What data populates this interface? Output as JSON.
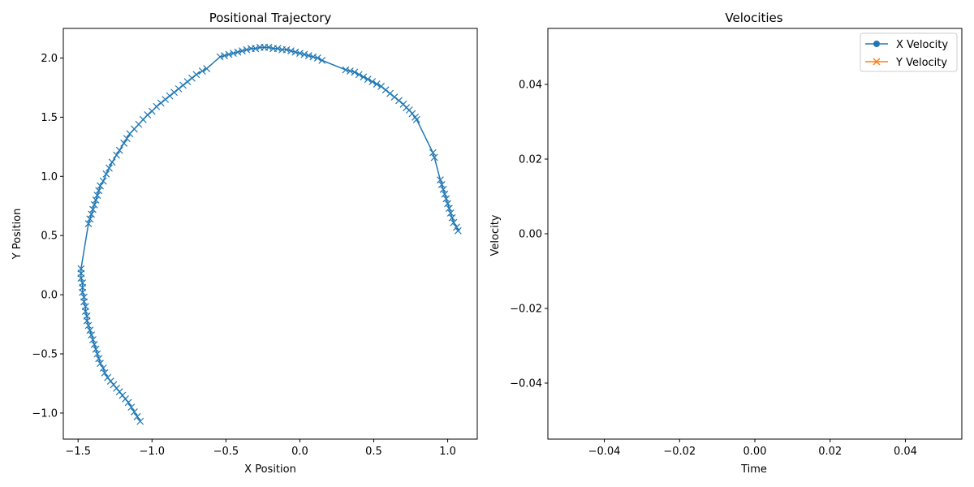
{
  "chart_data": [
    {
      "type": "line",
      "title": "Positional Trajectory",
      "xlabel": "X Position",
      "ylabel": "Y Position",
      "xlim": [
        -1.6,
        1.2
      ],
      "ylim": [
        -1.22,
        2.25
      ],
      "xticks": [
        -1.5,
        -1.0,
        -0.5,
        0.0,
        0.5,
        1.0
      ],
      "xtick_labels": [
        "−1.5",
        "−1.0",
        "−0.5",
        "0.0",
        "0.5",
        "1.0"
      ],
      "yticks": [
        -1.0,
        -0.5,
        0.0,
        0.5,
        1.0,
        1.5,
        2.0
      ],
      "ytick_labels": [
        "−1.0",
        "−0.5",
        "0.0",
        "0.5",
        "1.0",
        "1.5",
        "2.0"
      ],
      "grid": false,
      "series": [
        {
          "marker": "x",
          "color": "#1f77b4",
          "points": [
            [
              -1.08,
              -1.07
            ],
            [
              -1.1,
              -1.03
            ],
            [
              -1.12,
              -0.99
            ],
            [
              -1.14,
              -0.95
            ],
            [
              -1.16,
              -0.91
            ],
            [
              -1.18,
              -0.88
            ],
            [
              -1.2,
              -0.85
            ],
            [
              -1.22,
              -0.82
            ],
            [
              -1.24,
              -0.79
            ],
            [
              -1.26,
              -0.76
            ],
            [
              -1.28,
              -0.73
            ],
            [
              -1.3,
              -0.7
            ],
            [
              -1.32,
              -0.66
            ],
            [
              -1.33,
              -0.62
            ],
            [
              -1.35,
              -0.58
            ],
            [
              -1.36,
              -0.54
            ],
            [
              -1.37,
              -0.5
            ],
            [
              -1.38,
              -0.46
            ],
            [
              -1.39,
              -0.42
            ],
            [
              -1.4,
              -0.38
            ],
            [
              -1.41,
              -0.34
            ],
            [
              -1.42,
              -0.3
            ],
            [
              -1.43,
              -0.26
            ],
            [
              -1.44,
              -0.22
            ],
            [
              -1.44,
              -0.18
            ],
            [
              -1.45,
              -0.14
            ],
            [
              -1.45,
              -0.1
            ],
            [
              -1.46,
              -0.06
            ],
            [
              -1.46,
              -0.02
            ],
            [
              -1.47,
              0.02
            ],
            [
              -1.47,
              0.06
            ],
            [
              -1.47,
              0.1
            ],
            [
              -1.48,
              0.14
            ],
            [
              -1.48,
              0.18
            ],
            [
              -1.48,
              0.22
            ],
            [
              -1.43,
              0.6
            ],
            [
              -1.42,
              0.64
            ],
            [
              -1.41,
              0.68
            ],
            [
              -1.4,
              0.72
            ],
            [
              -1.39,
              0.76
            ],
            [
              -1.38,
              0.8
            ],
            [
              -1.37,
              0.84
            ],
            [
              -1.36,
              0.88
            ],
            [
              -1.35,
              0.92
            ],
            [
              -1.33,
              0.96
            ],
            [
              -1.31,
              1.02
            ],
            [
              -1.29,
              1.07
            ],
            [
              -1.27,
              1.12
            ],
            [
              -1.24,
              1.18
            ],
            [
              -1.22,
              1.22
            ],
            [
              -1.19,
              1.28
            ],
            [
              -1.17,
              1.32
            ],
            [
              -1.15,
              1.36
            ],
            [
              -1.12,
              1.4
            ],
            [
              -1.09,
              1.44
            ],
            [
              -1.06,
              1.48
            ],
            [
              -1.03,
              1.52
            ],
            [
              -1.0,
              1.55
            ],
            [
              -0.97,
              1.59
            ],
            [
              -0.94,
              1.62
            ],
            [
              -0.91,
              1.65
            ],
            [
              -0.88,
              1.68
            ],
            [
              -0.85,
              1.71
            ],
            [
              -0.82,
              1.74
            ],
            [
              -0.79,
              1.77
            ],
            [
              -0.76,
              1.8
            ],
            [
              -0.73,
              1.83
            ],
            [
              -0.7,
              1.86
            ],
            [
              -0.66,
              1.89
            ],
            [
              -0.63,
              1.91
            ],
            [
              -0.54,
              2.01
            ],
            [
              -0.51,
              2.02
            ],
            [
              -0.48,
              2.03
            ],
            [
              -0.45,
              2.04
            ],
            [
              -0.42,
              2.05
            ],
            [
              -0.39,
              2.06
            ],
            [
              -0.36,
              2.07
            ],
            [
              -0.33,
              2.08
            ],
            [
              -0.3,
              2.08
            ],
            [
              -0.27,
              2.09
            ],
            [
              -0.24,
              2.09
            ],
            [
              -0.21,
              2.09
            ],
            [
              -0.18,
              2.08
            ],
            [
              -0.15,
              2.08
            ],
            [
              -0.12,
              2.07
            ],
            [
              -0.09,
              2.07
            ],
            [
              -0.06,
              2.06
            ],
            [
              -0.03,
              2.05
            ],
            [
              0.0,
              2.04
            ],
            [
              0.03,
              2.03
            ],
            [
              0.06,
              2.02
            ],
            [
              0.09,
              2.01
            ],
            [
              0.12,
              2.0
            ],
            [
              0.15,
              1.98
            ],
            [
              0.31,
              1.9
            ],
            [
              0.34,
              1.89
            ],
            [
              0.37,
              1.88
            ],
            [
              0.4,
              1.86
            ],
            [
              0.43,
              1.84
            ],
            [
              0.46,
              1.82
            ],
            [
              0.49,
              1.8
            ],
            [
              0.52,
              1.78
            ],
            [
              0.55,
              1.76
            ],
            [
              0.58,
              1.73
            ],
            [
              0.61,
              1.7
            ],
            [
              0.64,
              1.67
            ],
            [
              0.67,
              1.64
            ],
            [
              0.7,
              1.61
            ],
            [
              0.72,
              1.58
            ],
            [
              0.74,
              1.56
            ],
            [
              0.76,
              1.53
            ],
            [
              0.78,
              1.5
            ],
            [
              0.79,
              1.48
            ],
            [
              0.9,
              1.2
            ],
            [
              0.91,
              1.16
            ],
            [
              0.95,
              0.97
            ],
            [
              0.96,
              0.93
            ],
            [
              0.97,
              0.89
            ],
            [
              0.98,
              0.85
            ],
            [
              0.99,
              0.81
            ],
            [
              1.0,
              0.77
            ],
            [
              1.01,
              0.73
            ],
            [
              1.02,
              0.69
            ],
            [
              1.03,
              0.65
            ],
            [
              1.04,
              0.61
            ],
            [
              1.06,
              0.57
            ],
            [
              1.07,
              0.54
            ]
          ]
        }
      ]
    },
    {
      "type": "line",
      "title": "Velocities",
      "xlabel": "Time",
      "ylabel": "Velocity",
      "xlim": [
        -0.055,
        0.055
      ],
      "ylim": [
        -0.055,
        0.055
      ],
      "xticks": [
        -0.04,
        -0.02,
        0.0,
        0.02,
        0.04
      ],
      "xtick_labels": [
        "−0.04",
        "−0.02",
        "0.00",
        "0.02",
        "0.04"
      ],
      "yticks": [
        -0.04,
        -0.02,
        0.0,
        0.02,
        0.04
      ],
      "ytick_labels": [
        "−0.04",
        "−0.02",
        "0.00",
        "0.02",
        "0.04"
      ],
      "grid": false,
      "legend_position": "top-right",
      "series": [
        {
          "name": "X Velocity",
          "marker": "o",
          "color": "#1f77b4",
          "values": []
        },
        {
          "name": "Y Velocity",
          "marker": "x",
          "color": "#ff7f0e",
          "values": []
        }
      ]
    }
  ]
}
